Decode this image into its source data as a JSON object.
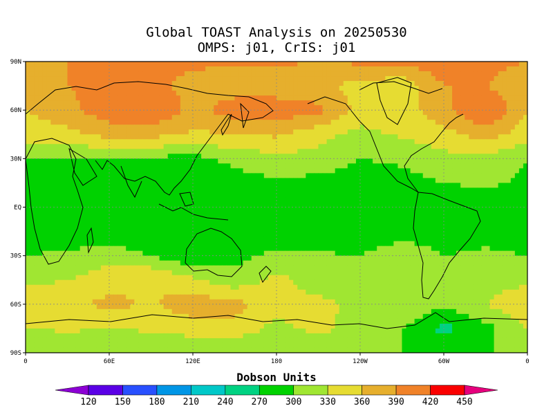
{
  "header": {
    "title_line1": "Global TOAST Analysis on 20250530",
    "title_line2": "OMPS: j01, CrIS: j01"
  },
  "colorbar": {
    "title": "Dobson Units",
    "ticks": [
      "120",
      "150",
      "180",
      "210",
      "240",
      "270",
      "300",
      "330",
      "360",
      "390",
      "420",
      "450"
    ],
    "colors": [
      "#8c00d4",
      "#5a00e6",
      "#2850ff",
      "#0096e6",
      "#00c8c8",
      "#00d282",
      "#00d200",
      "#a0e632",
      "#e6dc32",
      "#e6af2d",
      "#f08228",
      "#fa0000",
      "#e6007d"
    ]
  },
  "map": {
    "projection": "cylindrical equidistant",
    "lon_range": [
      0,
      360
    ],
    "lat_range": [
      -90,
      90
    ],
    "grid": true,
    "lat_labels": [
      "90N",
      "60N",
      "30N",
      "EQ",
      "30S",
      "60S",
      "90S"
    ],
    "lon_labels": [
      "0",
      "60E",
      "120E",
      "180",
      "120W",
      "60W",
      "0"
    ]
  },
  "chart_data": {
    "type": "heatmap",
    "title": "Global TOAST Analysis on 20250530",
    "subtitle": "OMPS: j01, CrIS: j01",
    "units": "Dobson Units",
    "xlabel": "",
    "ylabel": "",
    "lon": [
      0,
      30,
      60,
      90,
      120,
      150,
      180,
      210,
      240,
      270,
      300,
      330,
      360
    ],
    "lat": [
      90,
      75,
      60,
      45,
      30,
      15,
      0,
      -15,
      -30,
      -45,
      -60,
      -75,
      -90
    ],
    "values": [
      [
        390,
        390,
        395,
        400,
        395,
        395,
        395,
        390,
        395,
        400,
        410,
        400,
        390
      ],
      [
        370,
        390,
        400,
        400,
        380,
        375,
        370,
        365,
        350,
        340,
        390,
        390,
        370
      ],
      [
        360,
        380,
        410,
        420,
        380,
        405,
        410,
        400,
        350,
        345,
        380,
        425,
        360
      ],
      [
        345,
        350,
        370,
        370,
        355,
        360,
        365,
        340,
        320,
        335,
        350,
        375,
        345
      ],
      [
        300,
        300,
        300,
        295,
        290,
        310,
        320,
        320,
        300,
        305,
        320,
        320,
        300
      ],
      [
        295,
        290,
        280,
        285,
        275,
        285,
        295,
        290,
        285,
        290,
        300,
        305,
        295
      ],
      [
        280,
        280,
        275,
        270,
        270,
        270,
        270,
        270,
        275,
        275,
        280,
        285,
        280
      ],
      [
        285,
        280,
        275,
        270,
        275,
        270,
        270,
        270,
        275,
        280,
        285,
        290,
        285
      ],
      [
        300,
        305,
        320,
        300,
        275,
        290,
        310,
        305,
        300,
        325,
        300,
        305,
        300
      ],
      [
        320,
        330,
        345,
        360,
        335,
        310,
        340,
        310,
        315,
        305,
        310,
        315,
        320
      ],
      [
        360,
        350,
        370,
        355,
        380,
        370,
        345,
        340,
        320,
        330,
        305,
        330,
        360
      ],
      [
        330,
        335,
        330,
        335,
        345,
        350,
        320,
        340,
        315,
        300,
        260,
        290,
        330
      ],
      [
        300,
        300,
        300,
        300,
        300,
        300,
        300,
        300,
        300,
        300,
        300,
        300,
        300
      ]
    ]
  }
}
